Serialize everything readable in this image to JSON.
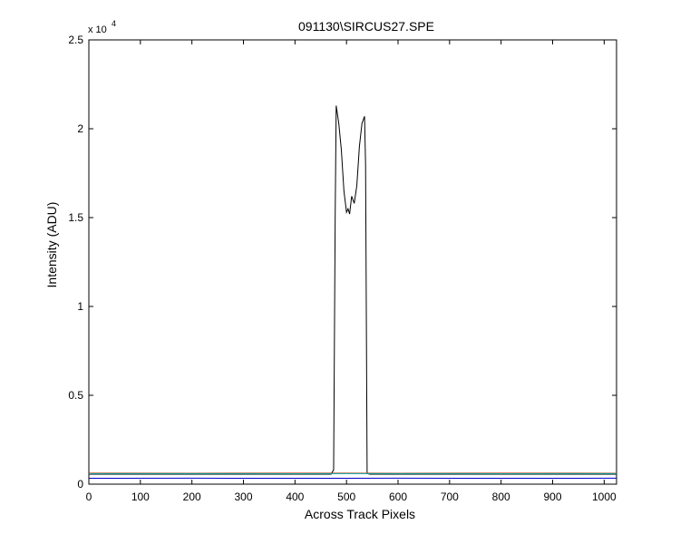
{
  "chart_data": {
    "type": "line",
    "title": "091130\\SIRCUS27.SPE",
    "xlabel": "Across Track Pixels",
    "ylabel": "Intensity (ADU)",
    "xlim": [
      0,
      1024
    ],
    "ylim": [
      0,
      25000
    ],
    "y_multiplier": "x 10",
    "y_multiplier_exponent": "4",
    "xticks": [
      0,
      100,
      200,
      300,
      400,
      500,
      600,
      700,
      800,
      900,
      1000
    ],
    "xtick_labels": [
      "0",
      "100",
      "200",
      "300",
      "400",
      "500",
      "600",
      "700",
      "800",
      "900",
      "1000"
    ],
    "yticks": [
      0,
      5000,
      10000,
      15000,
      20000,
      25000
    ],
    "ytick_labels": [
      "0",
      "0.5",
      "1",
      "1.5",
      "2",
      "2.5"
    ],
    "grid": false,
    "series": [
      {
        "color": "#000000",
        "x": [
          0,
          100,
          200,
          300,
          400,
          460,
          470,
          475,
          478,
          480,
          485,
          490,
          495,
          500,
          503,
          506,
          510,
          515,
          520,
          525,
          530,
          535,
          537,
          540,
          545,
          560,
          600,
          700,
          800,
          900,
          1024
        ],
        "y": [
          560,
          560,
          560,
          560,
          560,
          560,
          560,
          800,
          15000,
          21300,
          20300,
          18800,
          16500,
          15300,
          15500,
          15200,
          16200,
          15800,
          16800,
          19000,
          20300,
          20700,
          18000,
          600,
          560,
          560,
          560,
          560,
          560,
          560,
          560
        ]
      },
      {
        "color": "#cc3300",
        "x": [
          0,
          200,
          400,
          600,
          800,
          1024
        ],
        "y": [
          620,
          615,
          620,
          615,
          620,
          615
        ]
      },
      {
        "color": "#00aaaa",
        "x": [
          0,
          200,
          400,
          600,
          800,
          1024
        ],
        "y": [
          590,
          595,
          590,
          595,
          590,
          595
        ]
      },
      {
        "color": "#0000cc",
        "x": [
          0,
          200,
          400,
          600,
          800,
          1024
        ],
        "y": [
          330,
          335,
          330,
          335,
          330,
          335
        ]
      }
    ]
  }
}
